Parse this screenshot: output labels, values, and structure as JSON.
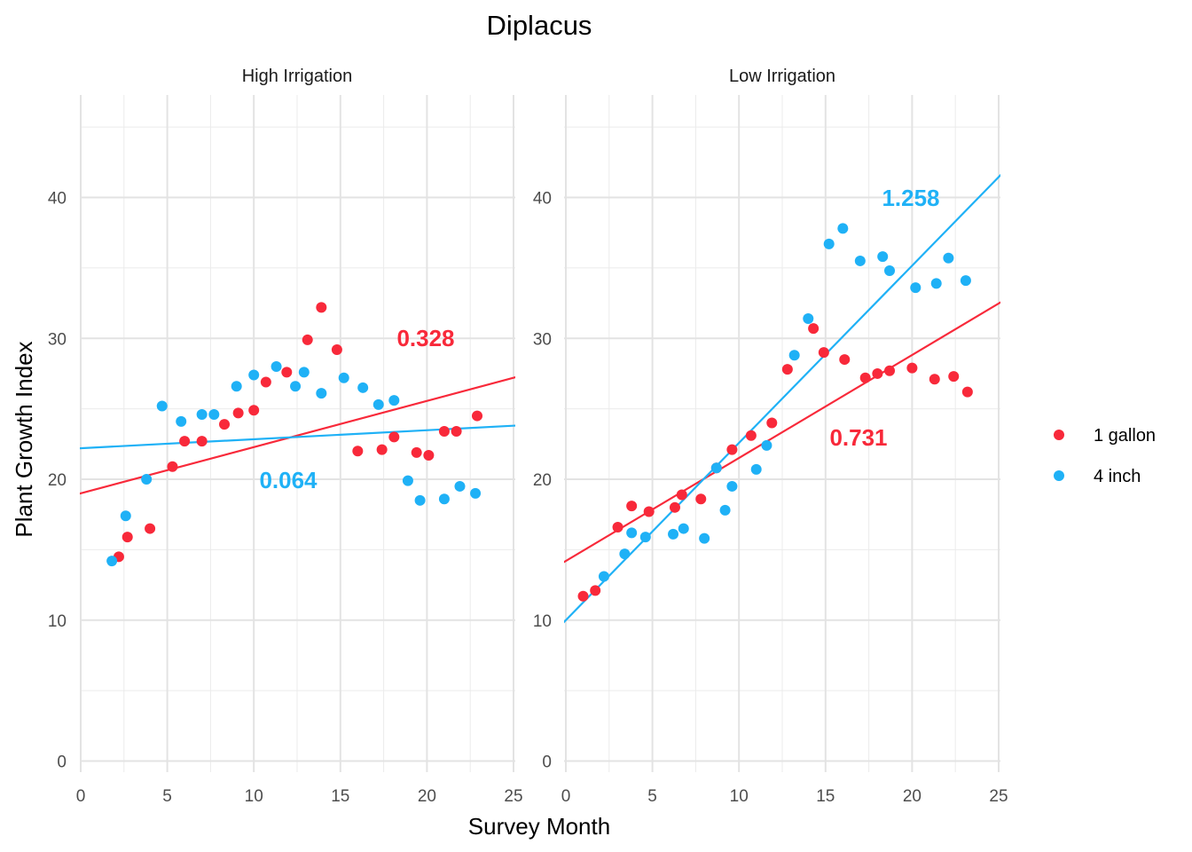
{
  "chart_data": {
    "type": "scatter",
    "title": "Diplacus",
    "xlabel": "Survey Month",
    "ylabel": "Plant Growth Index",
    "xlim": [
      0,
      25
    ],
    "ylim": [
      0,
      45
    ],
    "x_ticks": [
      0,
      5,
      10,
      15,
      20,
      25
    ],
    "y_ticks": [
      0,
      10,
      20,
      30,
      40
    ],
    "grid": true,
    "legend_placement": "right",
    "colors": {
      "1 gallon": "#F8293A",
      "4 inch": "#1FB1F6"
    },
    "legend": [
      {
        "name": "1 gallon",
        "color": "#F8293A"
      },
      {
        "name": "4 inch",
        "color": "#1FB1F6"
      }
    ],
    "panels": [
      {
        "label": "High Irrigation",
        "series": [
          {
            "name": "1 gallon",
            "points": [
              [
                2.2,
                14.5
              ],
              [
                2.7,
                15.9
              ],
              [
                4.0,
                16.5
              ],
              [
                5.3,
                20.9
              ],
              [
                6.0,
                22.7
              ],
              [
                7.0,
                22.7
              ],
              [
                8.3,
                23.9
              ],
              [
                9.1,
                24.7
              ],
              [
                10.0,
                24.9
              ],
              [
                10.7,
                26.9
              ],
              [
                11.9,
                27.6
              ],
              [
                13.1,
                29.9
              ],
              [
                13.9,
                32.2
              ],
              [
                14.8,
                29.2
              ],
              [
                16.0,
                22.0
              ],
              [
                17.4,
                22.1
              ],
              [
                18.1,
                23.0
              ],
              [
                19.4,
                21.9
              ],
              [
                20.1,
                21.7
              ],
              [
                21.0,
                23.4
              ],
              [
                21.7,
                23.4
              ],
              [
                22.9,
                24.5
              ]
            ],
            "trend": {
              "intercept": 19.0,
              "slope": 0.328,
              "label": "0.328"
            }
          },
          {
            "name": "4 inch",
            "points": [
              [
                1.8,
                14.2
              ],
              [
                2.6,
                17.4
              ],
              [
                3.8,
                20.0
              ],
              [
                4.7,
                25.2
              ],
              [
                5.8,
                24.1
              ],
              [
                7.0,
                24.6
              ],
              [
                7.7,
                24.6
              ],
              [
                9.0,
                26.6
              ],
              [
                10.0,
                27.4
              ],
              [
                11.3,
                28.0
              ],
              [
                12.4,
                26.6
              ],
              [
                12.9,
                27.6
              ],
              [
                13.9,
                26.1
              ],
              [
                15.2,
                27.2
              ],
              [
                16.3,
                26.5
              ],
              [
                17.2,
                25.3
              ],
              [
                18.1,
                25.6
              ],
              [
                18.9,
                19.9
              ],
              [
                19.6,
                18.5
              ],
              [
                21.0,
                18.6
              ],
              [
                21.9,
                19.5
              ],
              [
                22.8,
                19.0
              ]
            ],
            "trend": {
              "intercept": 22.2,
              "slope": 0.064,
              "label": "0.064"
            }
          }
        ]
      },
      {
        "label": "Low Irrigation",
        "series": [
          {
            "name": "1 gallon",
            "points": [
              [
                1.0,
                11.7
              ],
              [
                1.7,
                12.1
              ],
              [
                3.0,
                16.6
              ],
              [
                3.8,
                18.1
              ],
              [
                4.8,
                17.7
              ],
              [
                6.3,
                18.0
              ],
              [
                6.7,
                18.9
              ],
              [
                7.8,
                18.6
              ],
              [
                8.7,
                20.8
              ],
              [
                9.6,
                22.1
              ],
              [
                10.7,
                23.1
              ],
              [
                11.9,
                24.0
              ],
              [
                12.8,
                27.8
              ],
              [
                14.3,
                30.7
              ],
              [
                14.9,
                29.0
              ],
              [
                16.1,
                28.5
              ],
              [
                17.3,
                27.2
              ],
              [
                18.0,
                27.5
              ],
              [
                18.7,
                27.7
              ],
              [
                20.0,
                27.9
              ],
              [
                21.3,
                27.1
              ],
              [
                22.4,
                27.3
              ],
              [
                23.2,
                26.2
              ]
            ],
            "trend": {
              "intercept": 14.2,
              "slope": 0.731,
              "label": "0.731"
            }
          },
          {
            "name": "4 inch",
            "points": [
              [
                2.2,
                13.1
              ],
              [
                3.4,
                14.7
              ],
              [
                3.8,
                16.2
              ],
              [
                4.6,
                15.9
              ],
              [
                6.2,
                16.1
              ],
              [
                6.8,
                16.5
              ],
              [
                8.0,
                15.8
              ],
              [
                8.7,
                20.8
              ],
              [
                9.2,
                17.8
              ],
              [
                9.6,
                19.5
              ],
              [
                11.0,
                20.7
              ],
              [
                11.6,
                22.4
              ],
              [
                13.2,
                28.8
              ],
              [
                14.0,
                31.4
              ],
              [
                15.2,
                36.7
              ],
              [
                16.0,
                37.8
              ],
              [
                17.0,
                35.5
              ],
              [
                18.3,
                35.8
              ],
              [
                18.7,
                34.8
              ],
              [
                20.2,
                33.6
              ],
              [
                21.4,
                33.9
              ],
              [
                22.1,
                35.7
              ],
              [
                23.1,
                34.1
              ]
            ],
            "trend": {
              "intercept": 10.0,
              "slope": 1.258,
              "label": "1.258"
            }
          }
        ]
      }
    ]
  }
}
